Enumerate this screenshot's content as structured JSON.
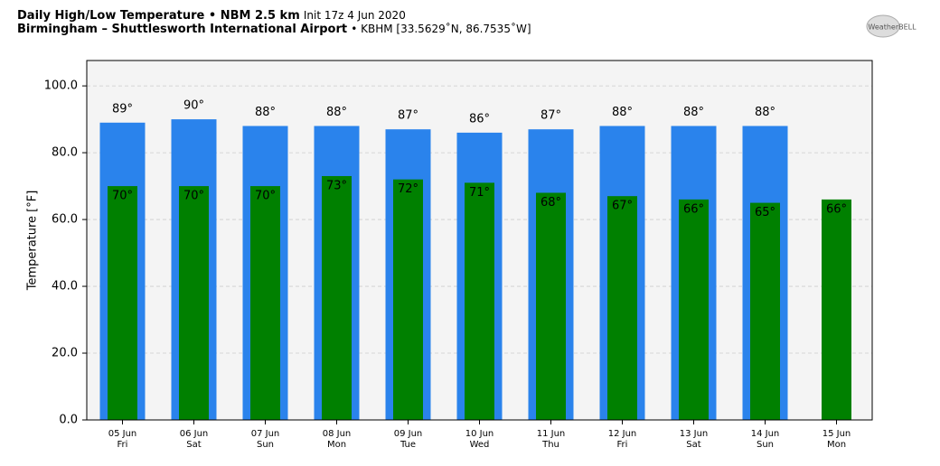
{
  "chart_data": {
    "type": "bar",
    "title": "Daily High/Low Temperature • NBM 2.5 km",
    "title_note": "Init 17z 4 Jun 2020",
    "subtitle": "Birmingham – Shuttlesworth International Airport",
    "subtitle_note": "• KBHM [33.5629˚N, 86.7535˚W]",
    "logo_text": "WeatherBELL",
    "ylabel": "Temperature [°F]",
    "categories": [
      "05 Jun",
      "06 Jun",
      "07 Jun",
      "08 Jun",
      "09 Jun",
      "10 Jun",
      "11 Jun",
      "12 Jun",
      "13 Jun",
      "14 Jun",
      "15 Jun"
    ],
    "category_sublabels": [
      "Fri",
      "Sat",
      "Sun",
      "Mon",
      "Tue",
      "Wed",
      "Thu",
      "Fri",
      "Sat",
      "Sun",
      "Mon"
    ],
    "series": [
      {
        "color": "#2a83ec",
        "values": [
          89,
          90,
          88,
          88,
          87,
          86,
          87,
          88,
          88,
          88,
          null
        ],
        "value_labels": [
          "89°",
          "90°",
          "88°",
          "88°",
          "87°",
          "86°",
          "87°",
          "88°",
          "88°",
          "88°",
          null
        ]
      },
      {
        "color": "#008000",
        "values": [
          70,
          70,
          70,
          73,
          72,
          71,
          68,
          67,
          66,
          65,
          66
        ],
        "value_labels": [
          "70°",
          "70°",
          "70°",
          "73°",
          "72°",
          "71°",
          "68°",
          "67°",
          "66°",
          "65°",
          "66°"
        ]
      }
    ],
    "ylim": [
      0,
      107.6
    ],
    "yticks": [
      {
        "value": 0,
        "label": "0.0"
      },
      {
        "value": 20,
        "label": "20.0"
      },
      {
        "value": 40,
        "label": "40.0"
      },
      {
        "value": 60,
        "label": "60.0"
      },
      {
        "value": 80,
        "label": "80.0"
      },
      {
        "value": 100,
        "label": "100.0"
      }
    ],
    "grid": true
  }
}
